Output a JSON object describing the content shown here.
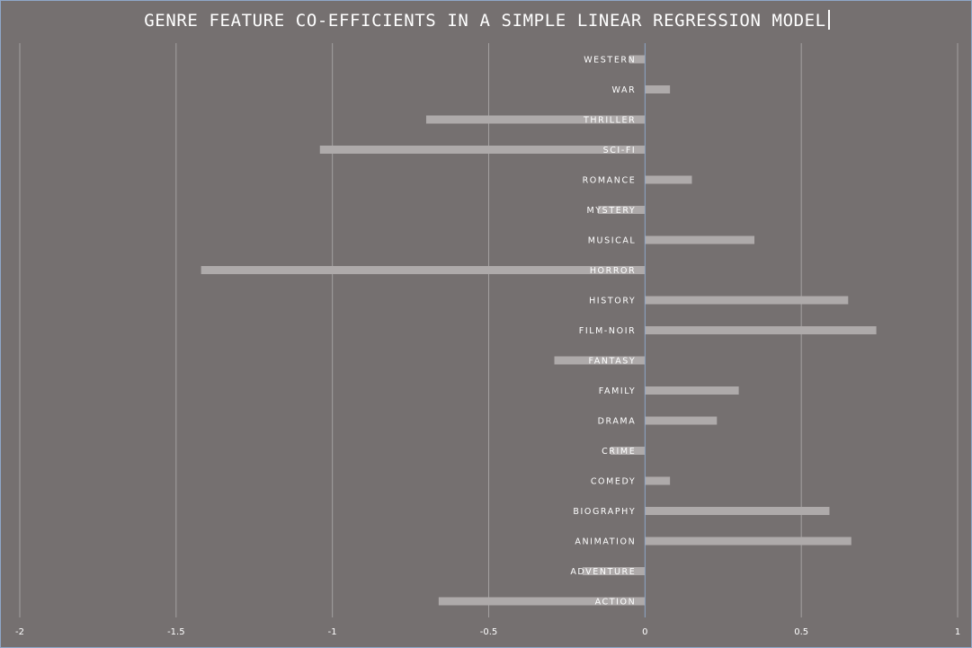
{
  "chart_data": {
    "type": "bar",
    "orientation": "horizontal",
    "title": "GENRE FEATURE CO-EFFICIENTS IN A SIMPLE LINEAR REGRESSION MODEL",
    "xlabel": "",
    "ylabel": "",
    "xlim": [
      -2,
      1
    ],
    "xticks": [
      -2,
      -1.5,
      -1,
      -0.5,
      0,
      0.5,
      1
    ],
    "xtick_labels": [
      "-2",
      "-1.5",
      "-1",
      "-0.5",
      "0",
      "0.5",
      "1"
    ],
    "grid": "vertical",
    "legend": "none",
    "categories": [
      "ACTION",
      "ADVENTURE",
      "ANIMATION",
      "BIOGRAPHY",
      "COMEDY",
      "CRIME",
      "DRAMA",
      "FAMILY",
      "FANTASY",
      "FILM-NOIR",
      "HISTORY",
      "HORROR",
      "MUSICAL",
      "MYSTERY",
      "ROMANCE",
      "SCI-FI",
      "THRILLER",
      "WAR",
      "WESTERN"
    ],
    "values": [
      -0.66,
      -0.2,
      0.66,
      0.59,
      0.08,
      -0.11,
      0.23,
      0.3,
      -0.29,
      0.74,
      0.65,
      -1.42,
      0.35,
      -0.15,
      0.15,
      -1.04,
      -0.7,
      0.08,
      -0.05
    ],
    "colors": {
      "background": "#757070",
      "bar": "#aeaaaa",
      "gridline": "#a3a0a0",
      "axis": "#8ea6c8",
      "text": "#ffffff"
    }
  }
}
